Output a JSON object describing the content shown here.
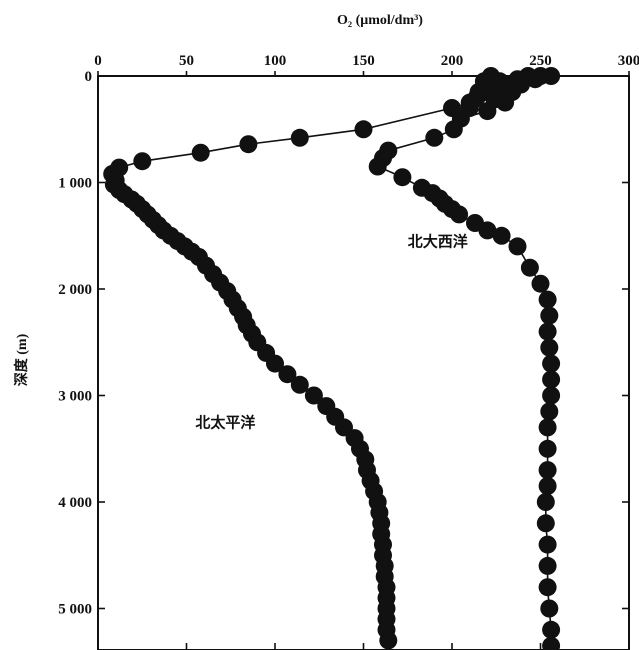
{
  "chart_data": {
    "type": "scatter",
    "title": "",
    "xlabel": "O₂ (μmol/dm³)",
    "ylabel": "深度 (m)",
    "x_axis_position": "top",
    "y_axis_inverted": true,
    "xlim": [
      0,
      300
    ],
    "ylim": [
      0,
      5400
    ],
    "x_ticks": [
      0,
      50,
      100,
      150,
      200,
      250,
      300
    ],
    "x_tick_labels": [
      "0",
      "50",
      "100",
      "150",
      "200",
      "250",
      "300"
    ],
    "y_ticks": [
      0,
      1000,
      2000,
      3000,
      4000,
      5000
    ],
    "y_tick_labels": [
      "0",
      "1 000",
      "2 000",
      "3 000",
      "4 000",
      "5 000"
    ],
    "grid": false,
    "legend": "none",
    "series": [
      {
        "name": "北大西洋",
        "label_at": [
          175,
          1600
        ],
        "points": [
          [
            243,
            0
          ],
          [
            250,
            0
          ],
          [
            256,
            0
          ],
          [
            237,
            30
          ],
          [
            247,
            30
          ],
          [
            218,
            50
          ],
          [
            229,
            70
          ],
          [
            239,
            80
          ],
          [
            226,
            100
          ],
          [
            220,
            150
          ],
          [
            234,
            150
          ],
          [
            214,
            200
          ],
          [
            224,
            220
          ],
          [
            230,
            250
          ],
          [
            210,
            300
          ],
          [
            220,
            330
          ],
          [
            205,
            400
          ],
          [
            201,
            500
          ],
          [
            190,
            580
          ],
          [
            164,
            700
          ],
          [
            161,
            770
          ],
          [
            158,
            850
          ],
          [
            172,
            950
          ],
          [
            183,
            1050
          ],
          [
            189,
            1100
          ],
          [
            193,
            1150
          ],
          [
            196,
            1200
          ],
          [
            200,
            1250
          ],
          [
            204,
            1300
          ],
          [
            213,
            1380
          ],
          [
            220,
            1450
          ],
          [
            228,
            1500
          ],
          [
            237,
            1600
          ],
          [
            244,
            1800
          ],
          [
            250,
            1950
          ],
          [
            254,
            2100
          ],
          [
            255,
            2250
          ],
          [
            254,
            2400
          ],
          [
            255,
            2550
          ],
          [
            256,
            2700
          ],
          [
            256,
            2850
          ],
          [
            256,
            3000
          ],
          [
            255,
            3150
          ],
          [
            254,
            3300
          ],
          [
            254,
            3500
          ],
          [
            254,
            3700
          ],
          [
            254,
            3850
          ],
          [
            253,
            4000
          ],
          [
            253,
            4200
          ],
          [
            254,
            4400
          ],
          [
            254,
            4600
          ],
          [
            254,
            4800
          ],
          [
            255,
            5000
          ],
          [
            256,
            5200
          ],
          [
            256,
            5350
          ]
        ]
      },
      {
        "name": "北太平洋",
        "label_at": [
          55,
          3300
        ],
        "points": [
          [
            222,
            0
          ],
          [
            227,
            50
          ],
          [
            215,
            150
          ],
          [
            210,
            250
          ],
          [
            200,
            300
          ],
          [
            150,
            500
          ],
          [
            114,
            580
          ],
          [
            85,
            640
          ],
          [
            58,
            720
          ],
          [
            25,
            800
          ],
          [
            12,
            860
          ],
          [
            8,
            920
          ],
          [
            10,
            980
          ],
          [
            9,
            1020
          ],
          [
            12,
            1070
          ],
          [
            15,
            1110
          ],
          [
            19,
            1160
          ],
          [
            22,
            1200
          ],
          [
            25,
            1250
          ],
          [
            28,
            1300
          ],
          [
            31,
            1350
          ],
          [
            34,
            1400
          ],
          [
            37,
            1450
          ],
          [
            41,
            1500
          ],
          [
            45,
            1550
          ],
          [
            49,
            1600
          ],
          [
            53,
            1650
          ],
          [
            57,
            1700
          ],
          [
            61,
            1780
          ],
          [
            65,
            1860
          ],
          [
            69,
            1940
          ],
          [
            73,
            2020
          ],
          [
            76,
            2100
          ],
          [
            79,
            2180
          ],
          [
            82,
            2260
          ],
          [
            84,
            2340
          ],
          [
            87,
            2420
          ],
          [
            90,
            2500
          ],
          [
            95,
            2600
          ],
          [
            100,
            2700
          ],
          [
            107,
            2800
          ],
          [
            114,
            2900
          ],
          [
            122,
            3000
          ],
          [
            129,
            3100
          ],
          [
            134,
            3200
          ],
          [
            139,
            3300
          ],
          [
            145,
            3400
          ],
          [
            148,
            3500
          ],
          [
            151,
            3600
          ],
          [
            152,
            3700
          ],
          [
            154,
            3800
          ],
          [
            156,
            3900
          ],
          [
            158,
            4000
          ],
          [
            159,
            4100
          ],
          [
            160,
            4200
          ],
          [
            160,
            4300
          ],
          [
            161,
            4400
          ],
          [
            161,
            4500
          ],
          [
            162,
            4600
          ],
          [
            162,
            4700
          ],
          [
            163,
            4800
          ],
          [
            163,
            4900
          ],
          [
            163,
            5000
          ],
          [
            163,
            5100
          ],
          [
            163,
            5200
          ],
          [
            164,
            5300
          ]
        ]
      }
    ]
  }
}
